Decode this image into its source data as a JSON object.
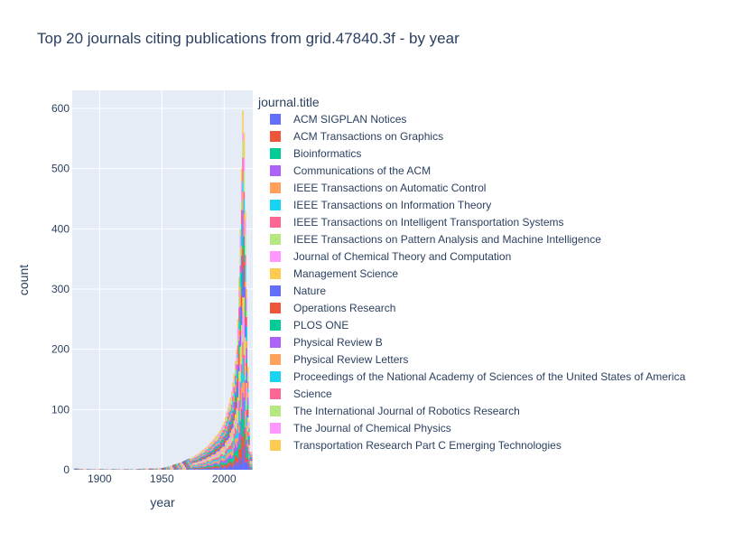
{
  "chart_data": {
    "type": "bar",
    "title": "Top 20 journals citing publications from grid.47840.3f - by year",
    "xlabel": "year",
    "ylabel": "count",
    "xlim": [
      1878,
      2023
    ],
    "ylim": [
      0,
      630
    ],
    "x_ticks": [
      "1900",
      "1950",
      "2000"
    ],
    "y_ticks": [
      "0",
      "100",
      "200",
      "300",
      "400",
      "500",
      "600"
    ],
    "grid": true,
    "stacked": true,
    "legend_title": "journal.title",
    "legend_position": "right",
    "totals_by_year": {
      "years": [
        1882,
        1888,
        1895,
        1900,
        1905,
        1910,
        1915,
        1920,
        1925,
        1930,
        1935,
        1940,
        1945,
        1950,
        1953,
        1956,
        1959,
        1962,
        1965,
        1968,
        1971,
        1974,
        1977,
        1980,
        1983,
        1986,
        1989,
        1992,
        1995,
        1998,
        2000,
        2002,
        2004,
        2006,
        2008,
        2010,
        2011,
        2012,
        2013,
        2014,
        2015,
        2016,
        2017,
        2018,
        2019,
        2020,
        2021
      ],
      "values": [
        2,
        1,
        1,
        1,
        1,
        1,
        1,
        1,
        1,
        1,
        2,
        2,
        2,
        3,
        4,
        6,
        8,
        10,
        12,
        15,
        18,
        20,
        24,
        28,
        33,
        38,
        45,
        52,
        60,
        70,
        80,
        95,
        110,
        130,
        160,
        200,
        250,
        320,
        400,
        500,
        596,
        560,
        430,
        300,
        170,
        80,
        30
      ]
    },
    "series": [
      {
        "name": "ACM SIGPLAN Notices",
        "color": "#636efa"
      },
      {
        "name": "ACM Transactions on Graphics",
        "color": "#EF553B"
      },
      {
        "name": "Bioinformatics",
        "color": "#00cc96"
      },
      {
        "name": "Communications of the ACM",
        "color": "#ab63fa"
      },
      {
        "name": "IEEE Transactions on Automatic Control",
        "color": "#FFA15A"
      },
      {
        "name": "IEEE Transactions on Information Theory",
        "color": "#19d3f3"
      },
      {
        "name": "IEEE Transactions on Intelligent Transportation Systems",
        "color": "#FF6692"
      },
      {
        "name": "IEEE Transactions on Pattern Analysis and Machine Intelligence",
        "color": "#B6E880"
      },
      {
        "name": "Journal of Chemical Theory and Computation",
        "color": "#FF97FF"
      },
      {
        "name": "Management Science",
        "color": "#FECB52"
      },
      {
        "name": "Nature",
        "color": "#636efa"
      },
      {
        "name": "Operations Research",
        "color": "#EF553B"
      },
      {
        "name": "PLOS ONE",
        "color": "#00cc96"
      },
      {
        "name": "Physical Review B",
        "color": "#ab63fa"
      },
      {
        "name": "Physical Review Letters",
        "color": "#FFA15A"
      },
      {
        "name": "Proceedings of the National Academy of Sciences of the United States of America",
        "color": "#19d3f3"
      },
      {
        "name": "Science",
        "color": "#FF6692"
      },
      {
        "name": "The International Journal of Robotics Research",
        "color": "#B6E880"
      },
      {
        "name": "The Journal of Chemical Physics",
        "color": "#FF97FF"
      },
      {
        "name": "Transportation Research Part C Emerging Technologies",
        "color": "#FECB52"
      }
    ]
  }
}
